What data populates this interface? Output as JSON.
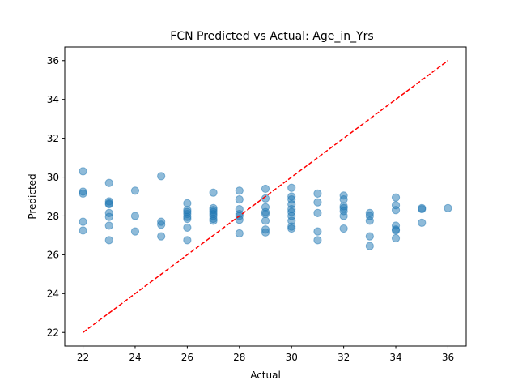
{
  "chart_data": {
    "type": "scatter",
    "title": "FCN Predicted vs Actual: Age_in_Yrs",
    "xlabel": "Actual",
    "ylabel": "Predicted",
    "xlim": [
      21.3,
      36.7
    ],
    "ylim": [
      21.3,
      36.7
    ],
    "xticks": [
      22,
      24,
      26,
      28,
      30,
      32,
      34,
      36
    ],
    "yticks": [
      22,
      24,
      26,
      28,
      30,
      32,
      34,
      36
    ],
    "grid": false,
    "point_color": "#1f77b4",
    "point_alpha": 0.5,
    "reference_line": {
      "x": [
        22,
        36
      ],
      "y": [
        22,
        36
      ],
      "color": "#ff0000",
      "style": "dashed"
    },
    "points": [
      [
        22,
        30.3
      ],
      [
        22,
        29.25
      ],
      [
        22,
        29.15
      ],
      [
        22,
        27.7
      ],
      [
        22,
        27.25
      ],
      [
        23,
        29.7
      ],
      [
        23,
        28.75
      ],
      [
        23,
        28.65
      ],
      [
        23,
        28.6
      ],
      [
        23,
        28.15
      ],
      [
        23,
        27.95
      ],
      [
        23,
        27.5
      ],
      [
        23,
        26.75
      ],
      [
        24,
        29.3
      ],
      [
        24,
        28.0
      ],
      [
        24,
        27.2
      ],
      [
        25,
        30.05
      ],
      [
        25,
        27.7
      ],
      [
        25,
        27.55
      ],
      [
        25,
        26.95
      ],
      [
        26,
        28.65
      ],
      [
        26,
        28.3
      ],
      [
        26,
        28.2
      ],
      [
        26,
        28.1
      ],
      [
        26,
        27.95
      ],
      [
        26,
        27.85
      ],
      [
        26,
        27.4
      ],
      [
        26,
        26.75
      ],
      [
        27,
        29.2
      ],
      [
        27,
        28.4
      ],
      [
        27,
        28.3
      ],
      [
        27,
        28.2
      ],
      [
        27,
        28.1
      ],
      [
        27,
        28.0
      ],
      [
        27,
        27.85
      ],
      [
        27,
        27.75
      ],
      [
        28,
        29.3
      ],
      [
        28,
        28.85
      ],
      [
        28,
        28.35
      ],
      [
        28,
        28.1
      ],
      [
        28,
        28.0
      ],
      [
        28,
        27.8
      ],
      [
        28,
        27.1
      ],
      [
        29,
        29.4
      ],
      [
        29,
        28.9
      ],
      [
        29,
        28.45
      ],
      [
        29,
        28.2
      ],
      [
        29,
        28.1
      ],
      [
        29,
        27.75
      ],
      [
        29,
        27.3
      ],
      [
        29,
        27.15
      ],
      [
        30,
        29.45
      ],
      [
        30,
        29.0
      ],
      [
        30,
        28.85
      ],
      [
        30,
        28.6
      ],
      [
        30,
        28.35
      ],
      [
        30,
        28.2
      ],
      [
        30,
        28.0
      ],
      [
        30,
        27.75
      ],
      [
        30,
        27.45
      ],
      [
        30,
        27.35
      ],
      [
        31,
        29.15
      ],
      [
        31,
        28.7
      ],
      [
        31,
        28.15
      ],
      [
        31,
        27.2
      ],
      [
        31,
        26.75
      ],
      [
        32,
        29.05
      ],
      [
        32,
        28.85
      ],
      [
        32,
        28.5
      ],
      [
        32,
        28.4
      ],
      [
        32,
        28.25
      ],
      [
        32,
        28.0
      ],
      [
        32,
        27.35
      ],
      [
        33,
        28.15
      ],
      [
        33,
        28.0
      ],
      [
        33,
        27.75
      ],
      [
        33,
        26.95
      ],
      [
        33,
        26.45
      ],
      [
        34,
        28.95
      ],
      [
        34,
        28.55
      ],
      [
        34,
        28.3
      ],
      [
        34,
        27.5
      ],
      [
        34,
        27.3
      ],
      [
        34,
        27.25
      ],
      [
        34,
        26.85
      ],
      [
        35,
        28.4
      ],
      [
        35,
        28.35
      ],
      [
        35,
        27.65
      ],
      [
        36,
        28.4
      ]
    ]
  }
}
